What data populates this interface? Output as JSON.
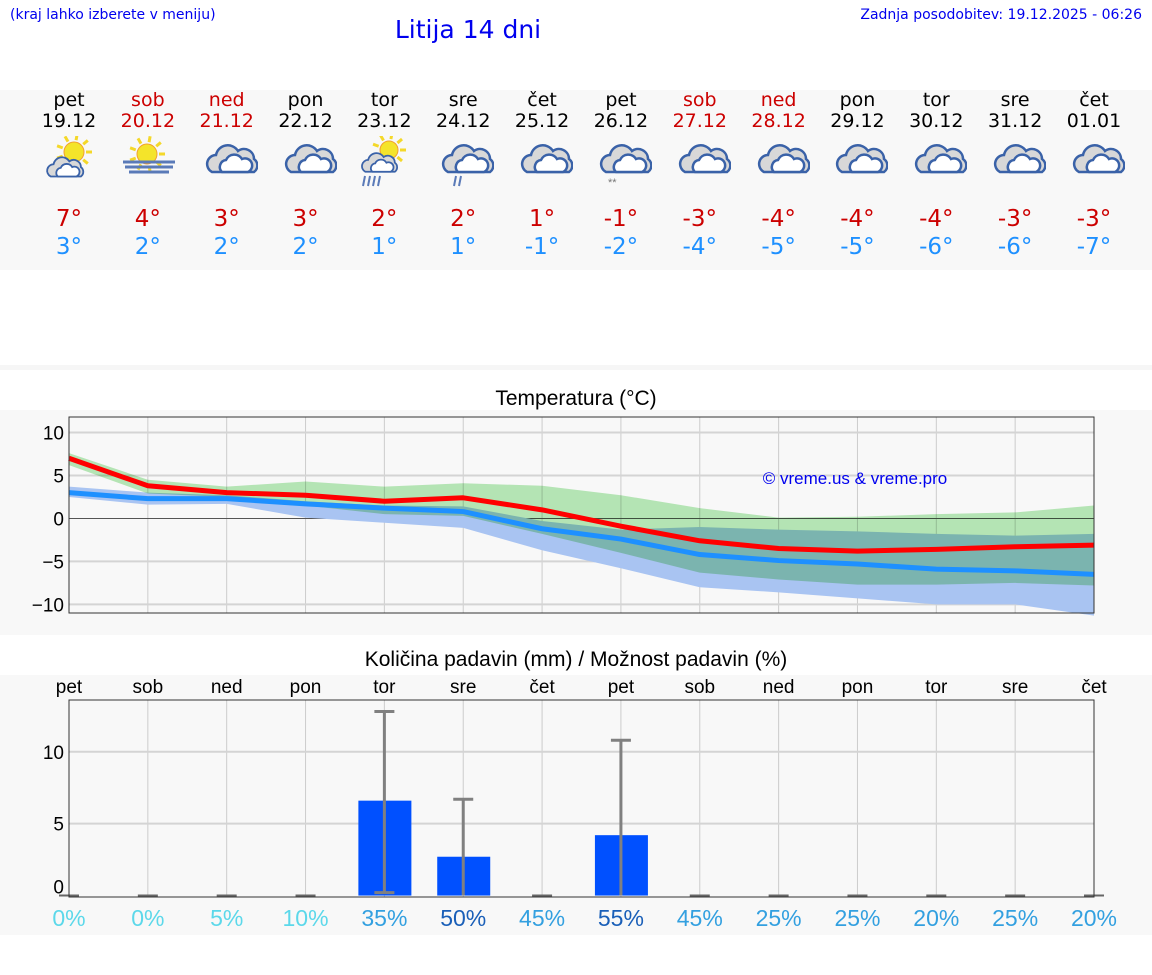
{
  "header": {
    "hint": "(kraj lahko izberete v meniju)",
    "title": "Litija 14 dni",
    "updated": "Zadnja posodobitev: 19.12.2025 - 06:26"
  },
  "days": [
    {
      "name": "pet",
      "date": "19.12",
      "weekend": false,
      "icon": "partly-cloudy-sun-icon",
      "max": "7°",
      "min": "3°"
    },
    {
      "name": "sob",
      "date": "20.12",
      "weekend": true,
      "icon": "sun-fog-icon",
      "max": "4°",
      "min": "2°"
    },
    {
      "name": "ned",
      "date": "21.12",
      "weekend": true,
      "icon": "cloudy-icon",
      "max": "3°",
      "min": "2°"
    },
    {
      "name": "pon",
      "date": "22.12",
      "weekend": false,
      "icon": "cloudy-icon",
      "max": "3°",
      "min": "2°"
    },
    {
      "name": "tor",
      "date": "23.12",
      "weekend": false,
      "icon": "sun-cloud-heavy-rain-icon",
      "max": "2°",
      "min": "1°"
    },
    {
      "name": "sre",
      "date": "24.12",
      "weekend": false,
      "icon": "cloudy-light-rain-icon",
      "max": "2°",
      "min": "1°"
    },
    {
      "name": "čet",
      "date": "25.12",
      "weekend": false,
      "icon": "cloudy-icon",
      "max": "1°",
      "min": "-1°"
    },
    {
      "name": "pet",
      "date": "26.12",
      "weekend": false,
      "icon": "cloudy-snow-icon",
      "max": "-1°",
      "min": "-2°"
    },
    {
      "name": "sob",
      "date": "27.12",
      "weekend": true,
      "icon": "cloudy-icon",
      "max": "-3°",
      "min": "-4°"
    },
    {
      "name": "ned",
      "date": "28.12",
      "weekend": true,
      "icon": "cloudy-icon",
      "max": "-4°",
      "min": "-5°"
    },
    {
      "name": "pon",
      "date": "29.12",
      "weekend": false,
      "icon": "cloudy-icon",
      "max": "-4°",
      "min": "-5°"
    },
    {
      "name": "tor",
      "date": "30.12",
      "weekend": false,
      "icon": "cloudy-icon",
      "max": "-4°",
      "min": "-6°"
    },
    {
      "name": "sre",
      "date": "31.12",
      "weekend": false,
      "icon": "cloudy-icon",
      "max": "-3°",
      "min": "-6°"
    },
    {
      "name": "čet",
      "date": "01.01",
      "weekend": false,
      "icon": "cloudy-icon",
      "max": "-3°",
      "min": "-7°"
    }
  ],
  "colors": {
    "max": "#ff0000",
    "min": "#1e90ff",
    "max_band": "#a8e6a8",
    "min_band": "#a9c4f2",
    "overlap": "#7ec8a8",
    "bar": "#0050ff",
    "error": "#808080"
  },
  "chart_data": [
    {
      "type": "line",
      "title": "Temperatura (°C)",
      "ylim": [
        -11,
        11.8
      ],
      "yticks": [
        10,
        5,
        0,
        -5,
        -10
      ],
      "ytick_labels": [
        "10",
        "5",
        "0",
        "−5",
        "−10"
      ],
      "grid": true,
      "watermark": "© vreme.us & vreme.pro",
      "x": [
        0,
        1,
        2,
        3,
        4,
        5,
        6,
        7,
        8,
        9,
        10,
        11,
        12,
        13
      ],
      "series": [
        {
          "name": "max",
          "values": [
            7,
            3.8,
            3,
            2.7,
            2,
            2.4,
            1,
            -0.9,
            -2.6,
            -3.5,
            -3.8,
            -3.6,
            -3.3,
            -3.1
          ]
        },
        {
          "name": "min",
          "values": [
            3,
            2.3,
            2.3,
            1.7,
            1.2,
            0.8,
            -1.2,
            -2.4,
            -4.2,
            -4.9,
            -5.3,
            -5.9,
            -6.1,
            -6.5
          ]
        }
      ],
      "bands": [
        {
          "name": "max_range",
          "upper": [
            7.6,
            4.5,
            3.7,
            4.3,
            3.7,
            4.1,
            3.8,
            2.7,
            1.2,
            0.1,
            0.2,
            0.5,
            0.7,
            1.5
          ],
          "lower": [
            6.2,
            2.9,
            2.5,
            1.5,
            0.5,
            0.3,
            -1.8,
            -4.0,
            -6.3,
            -7.1,
            -7.7,
            -7.7,
            -7.5,
            -7.8
          ]
        },
        {
          "name": "min_range",
          "upper": [
            3.7,
            3.0,
            2.7,
            2.0,
            1.5,
            1.4,
            -0.3,
            -1.3,
            -1.0,
            -1.3,
            -1.5,
            -1.8,
            -2.0,
            -1.8
          ],
          "lower": [
            2.5,
            1.6,
            1.7,
            0.1,
            -0.5,
            -1.1,
            -3.7,
            -5.8,
            -8.0,
            -8.6,
            -9.3,
            -10.0,
            -10.0,
            -11.3
          ]
        }
      ]
    },
    {
      "type": "bar",
      "title": "Količina padavin (mm) / Možnost padavin (%)",
      "ylim": [
        -0.1,
        13.6
      ],
      "yticks": [
        10,
        5,
        0
      ],
      "ytick_labels": [
        "10",
        "5",
        "0"
      ],
      "grid": true,
      "categories": [
        "pet",
        "sob",
        "ned",
        "pon",
        "tor",
        "sre",
        "čet",
        "pet",
        "sob",
        "ned",
        "pon",
        "tor",
        "sre",
        "čet"
      ],
      "values": [
        0,
        0,
        0,
        0,
        6.6,
        2.7,
        0,
        4.2,
        0,
        0,
        0,
        0,
        0,
        0
      ],
      "error_low": [
        0,
        0,
        0,
        0,
        0.2,
        0,
        0,
        0,
        0,
        0,
        0,
        0,
        0,
        0
      ],
      "error_high": [
        0,
        0,
        0,
        0,
        12.8,
        6.7,
        0,
        10.8,
        0,
        0,
        0,
        0,
        0,
        0
      ],
      "probability": [
        "0%",
        "0%",
        "5%",
        "10%",
        "35%",
        "50%",
        "45%",
        "55%",
        "45%",
        "25%",
        "25%",
        "20%",
        "25%",
        "20%"
      ],
      "probability_values": [
        0,
        0,
        5,
        10,
        35,
        50,
        45,
        55,
        45,
        25,
        25,
        20,
        25,
        20
      ]
    }
  ]
}
